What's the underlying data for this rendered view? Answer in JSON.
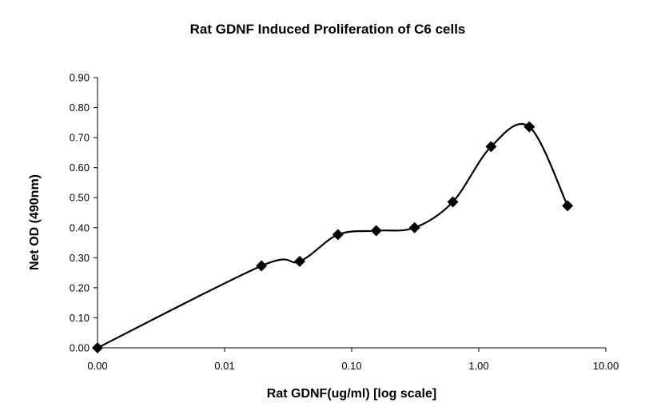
{
  "chart_data": {
    "type": "line",
    "title": "Rat GDNF Induced Proliferation of  C6 cells",
    "xlabel": "Rat GDNF(ug/ml)  [log scale]",
    "ylabel": "Net OD (490nm)",
    "x_scale": "log",
    "x_tick_labels": [
      "0.00",
      "0.01",
      "0.10",
      "1.00",
      "10.00"
    ],
    "y_tick_labels": [
      "0.00",
      "0.10",
      "0.20",
      "0.30",
      "0.40",
      "0.50",
      "0.60",
      "0.70",
      "0.80",
      "0.90"
    ],
    "xlim": [
      0.001,
      10
    ],
    "ylim": [
      0,
      0.9
    ],
    "grid": false,
    "legend": "none",
    "series": [
      {
        "line_style": "smoothed",
        "marker": "diamond",
        "color": "#000000",
        "points": [
          {
            "x": 0.001,
            "y": 0.0
          },
          {
            "x": 0.0195,
            "y": 0.273
          },
          {
            "x": 0.039,
            "y": 0.288
          },
          {
            "x": 0.078,
            "y": 0.377
          },
          {
            "x": 0.156,
            "y": 0.39
          },
          {
            "x": 0.3125,
            "y": 0.4
          },
          {
            "x": 0.625,
            "y": 0.486
          },
          {
            "x": 1.25,
            "y": 0.67
          },
          {
            "x": 2.5,
            "y": 0.736
          },
          {
            "x": 5.0,
            "y": 0.473
          }
        ]
      }
    ]
  }
}
